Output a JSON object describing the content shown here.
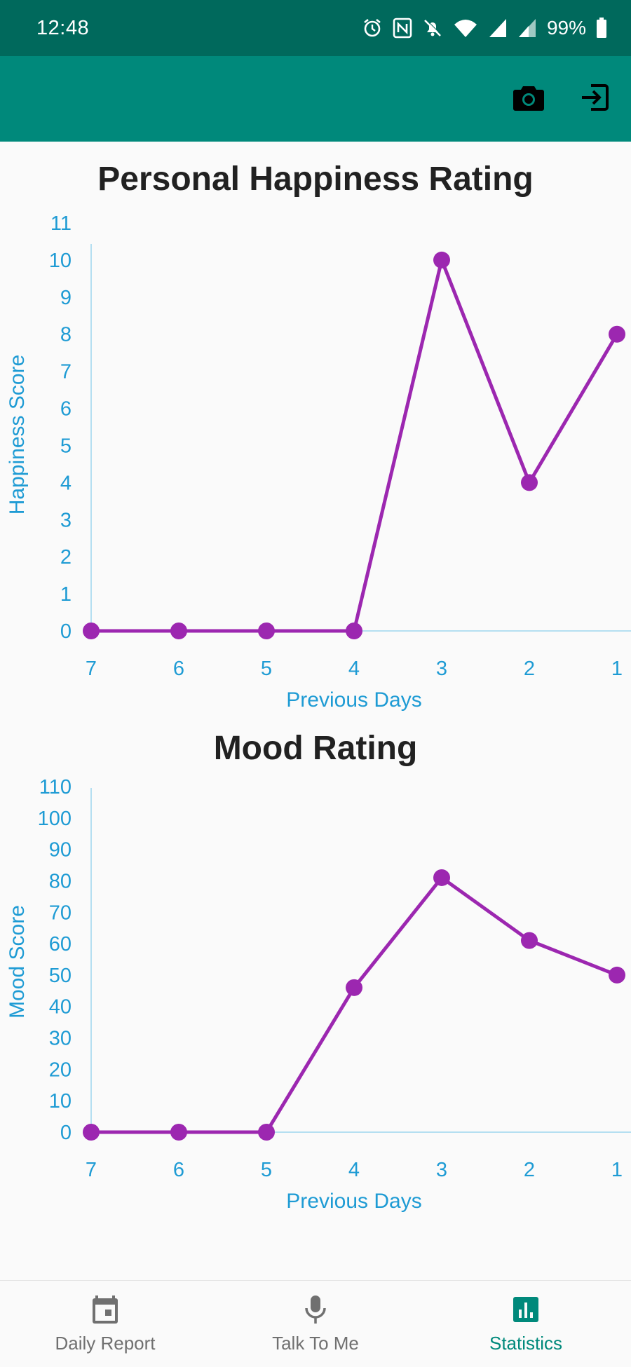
{
  "status_bar": {
    "time": "12:48",
    "battery": "99%",
    "icons": [
      "alarm-icon",
      "nfc-icon",
      "mute-icon",
      "wifi-icon",
      "signal-icon",
      "signal-icon",
      "battery-icon"
    ]
  },
  "app_bar": {
    "actions": [
      "camera-icon",
      "logout-icon"
    ],
    "color": "#00897b"
  },
  "charts": {
    "happiness_title": "Personal Happiness Rating",
    "mood_title": "Mood Rating"
  },
  "chart_data": [
    {
      "type": "line",
      "title": "Personal Happiness Rating",
      "xlabel": "Previous Days",
      "ylabel": "Happiness Score",
      "categories": [
        "7",
        "6",
        "5",
        "4",
        "3",
        "2",
        "1"
      ],
      "values": [
        0,
        0,
        0,
        0,
        10,
        4,
        8
      ],
      "ylim": [
        0,
        11
      ],
      "yticks": [
        0,
        1,
        2,
        3,
        4,
        5,
        6,
        7,
        8,
        9,
        10,
        11
      ],
      "color": "#9c27b0",
      "grid": false
    },
    {
      "type": "line",
      "title": "Mood Rating",
      "xlabel": "Previous Days",
      "ylabel": "Mood Score",
      "categories": [
        "7",
        "6",
        "5",
        "4",
        "3",
        "2",
        "1"
      ],
      "values": [
        0,
        0,
        0,
        46,
        81,
        61,
        50
      ],
      "ylim": [
        0,
        110
      ],
      "yticks": [
        0,
        10,
        20,
        30,
        40,
        50,
        60,
        70,
        80,
        90,
        100,
        110
      ],
      "color": "#9c27b0",
      "grid": false
    }
  ],
  "bottom_nav": {
    "items": [
      {
        "label": "Daily Report",
        "icon": "calendar-icon"
      },
      {
        "label": "Talk To Me",
        "icon": "microphone-icon"
      },
      {
        "label": "Statistics",
        "icon": "bar-chart-icon"
      }
    ],
    "active_color": "#00897b",
    "inactive_color": "#707070"
  }
}
